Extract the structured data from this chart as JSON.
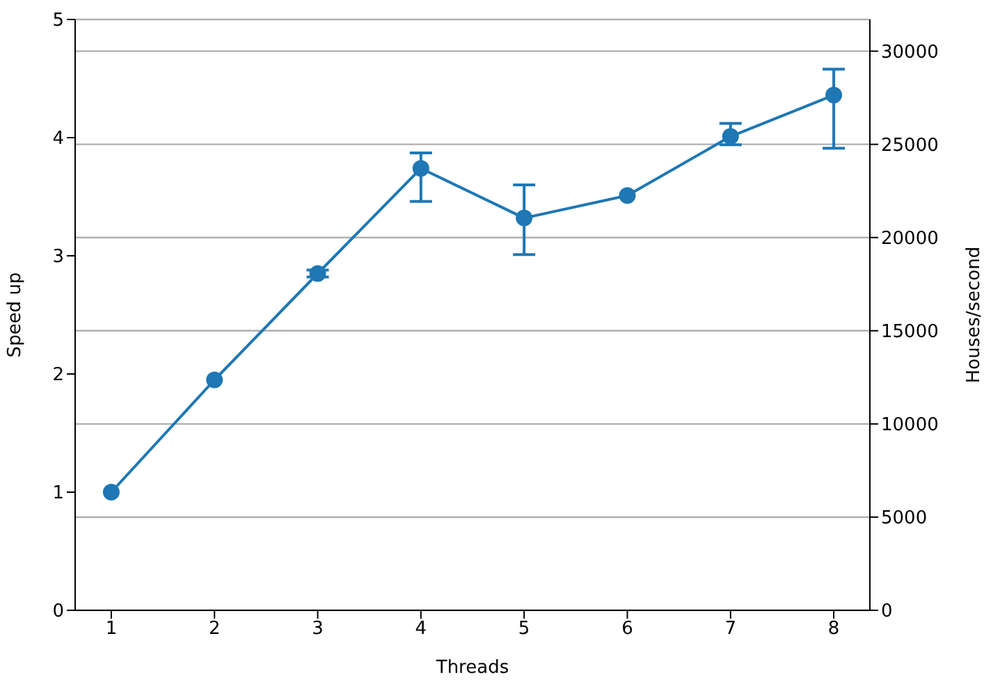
{
  "chart_data": {
    "type": "line",
    "xlabel": "Threads",
    "ylabel": "Speed up",
    "y2label": "Houses/second",
    "x": [
      1,
      2,
      3,
      4,
      5,
      6,
      7,
      8
    ],
    "series": [
      {
        "color": "#1f77b4",
        "values": [
          1.0,
          1.95,
          2.85,
          3.74,
          3.32,
          3.51,
          4.01,
          4.36
        ],
        "errors": [
          null,
          null,
          [
            2.82,
            2.88
          ],
          [
            3.46,
            3.87
          ],
          [
            3.01,
            3.6
          ],
          null,
          [
            3.94,
            4.12
          ],
          [
            3.91,
            4.58
          ]
        ]
      }
    ],
    "xlim": [
      0.65,
      8.35
    ],
    "xticks": [
      1,
      2,
      3,
      4,
      5,
      6,
      7,
      8
    ],
    "ylim": [
      0,
      5
    ],
    "yticks": [
      0,
      1,
      2,
      3,
      4,
      5
    ],
    "y2lim": [
      0,
      31700
    ],
    "y2ticks": [
      0,
      5000,
      10000,
      15000,
      20000,
      25000,
      30000
    ],
    "grid": "y2",
    "marker": "circle",
    "line_style": "solid"
  }
}
